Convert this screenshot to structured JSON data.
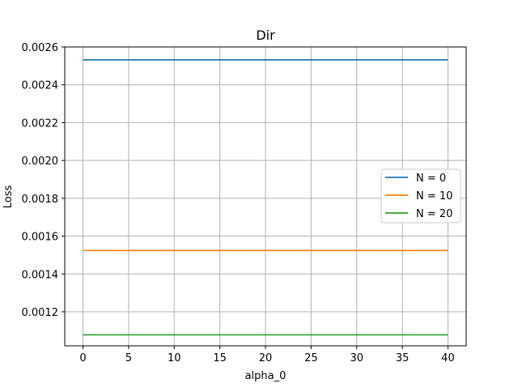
{
  "chart_data": {
    "type": "line",
    "title": "Dir",
    "xlabel": "alpha_0",
    "ylabel": "Loss",
    "xlim": [
      -2,
      42
    ],
    "ylim": [
      0.00102,
      0.0026
    ],
    "x_ticks": [
      0,
      5,
      10,
      15,
      20,
      25,
      30,
      35,
      40
    ],
    "y_ticks": [
      0.0012,
      0.0014,
      0.0016,
      0.0018,
      0.002,
      0.0022,
      0.0024,
      0.0026
    ],
    "y_tick_labels": [
      "0.0012",
      "0.0014",
      "0.0016",
      "0.0018",
      "0.0020",
      "0.0022",
      "0.0024",
      "0.0026"
    ],
    "grid": true,
    "legend_position": "center-right",
    "x": [
      0,
      40
    ],
    "series": [
      {
        "name": "N = 0",
        "color": "#1f77b4",
        "values": [
          0.002532,
          0.002532
        ]
      },
      {
        "name": "N = 10",
        "color": "#ff7f0e",
        "values": [
          0.001524,
          0.001524
        ]
      },
      {
        "name": "N = 20",
        "color": "#2ca02c",
        "values": [
          0.001078,
          0.001078
        ]
      }
    ]
  }
}
